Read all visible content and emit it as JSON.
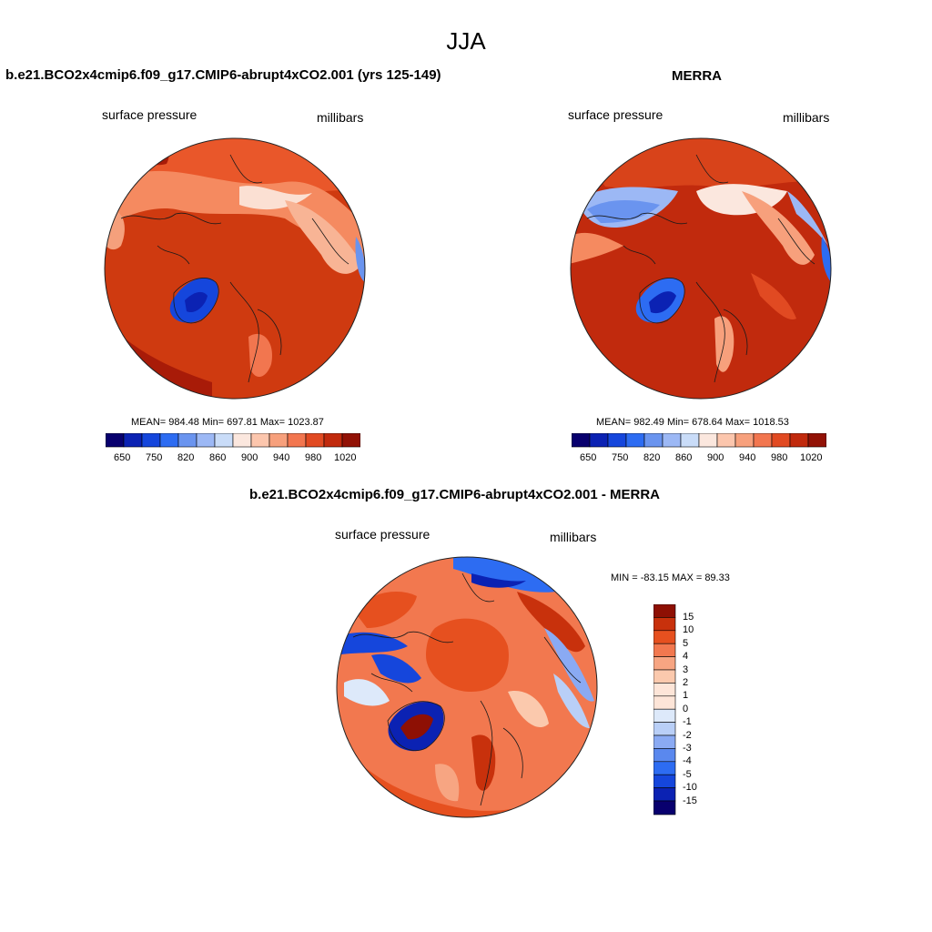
{
  "page": {
    "season": "JJA"
  },
  "colors": {
    "scale": [
      "#08006e",
      "#0b22b3",
      "#1546dc",
      "#2d6cf2",
      "#6a94ef",
      "#9cb8f5",
      "#c9dcf8",
      "#fbe7de",
      "#fcc6ad",
      "#f7a07c",
      "#f2764f",
      "#e14a22",
      "#c12a0d",
      "#921206"
    ],
    "diff_scale": [
      "#08006e",
      "#0b22b3",
      "#1546dc",
      "#2d6cf2",
      "#5a88ee",
      "#8aaaf3",
      "#b9cff7",
      "#dde9fa",
      "#fde5d8",
      "#fbc9ad",
      "#f7a582",
      "#f2784f",
      "#e6501f",
      "#c8310c",
      "#8e1004"
    ]
  },
  "panels": {
    "model": {
      "title": "b.e21.BCO2x4cmip6.f09_g17.CMIP6-abrupt4xCO2.001 (yrs 125-149)",
      "variable": "surface pressure",
      "units": "millibars",
      "stats": "MEAN= 984.48  Min= 697.81  Max= 1023.87",
      "colorbar_ticks": [
        "650",
        "750",
        "820",
        "860",
        "900",
        "940",
        "980",
        "1020"
      ]
    },
    "obs": {
      "title": "MERRA",
      "variable": "surface pressure",
      "units": "millibars",
      "stats": "MEAN= 982.49  Min= 678.64  Max= 1018.53",
      "colorbar_ticks": [
        "650",
        "750",
        "820",
        "860",
        "900",
        "940",
        "980",
        "1020"
      ]
    },
    "diff": {
      "title": "b.e21.BCO2x4cmip6.f09_g17.CMIP6-abrupt4xCO2.001 - MERRA",
      "variable": "surface pressure",
      "units": "millibars",
      "stats": "MIN = -83.15 MAX =  89.33",
      "colorbar_ticks": [
        "15",
        "10",
        "5",
        "4",
        "3",
        "2",
        "1",
        "0",
        "-1",
        "-2",
        "-3",
        "-4",
        "-5",
        "-10",
        "-15"
      ]
    }
  }
}
